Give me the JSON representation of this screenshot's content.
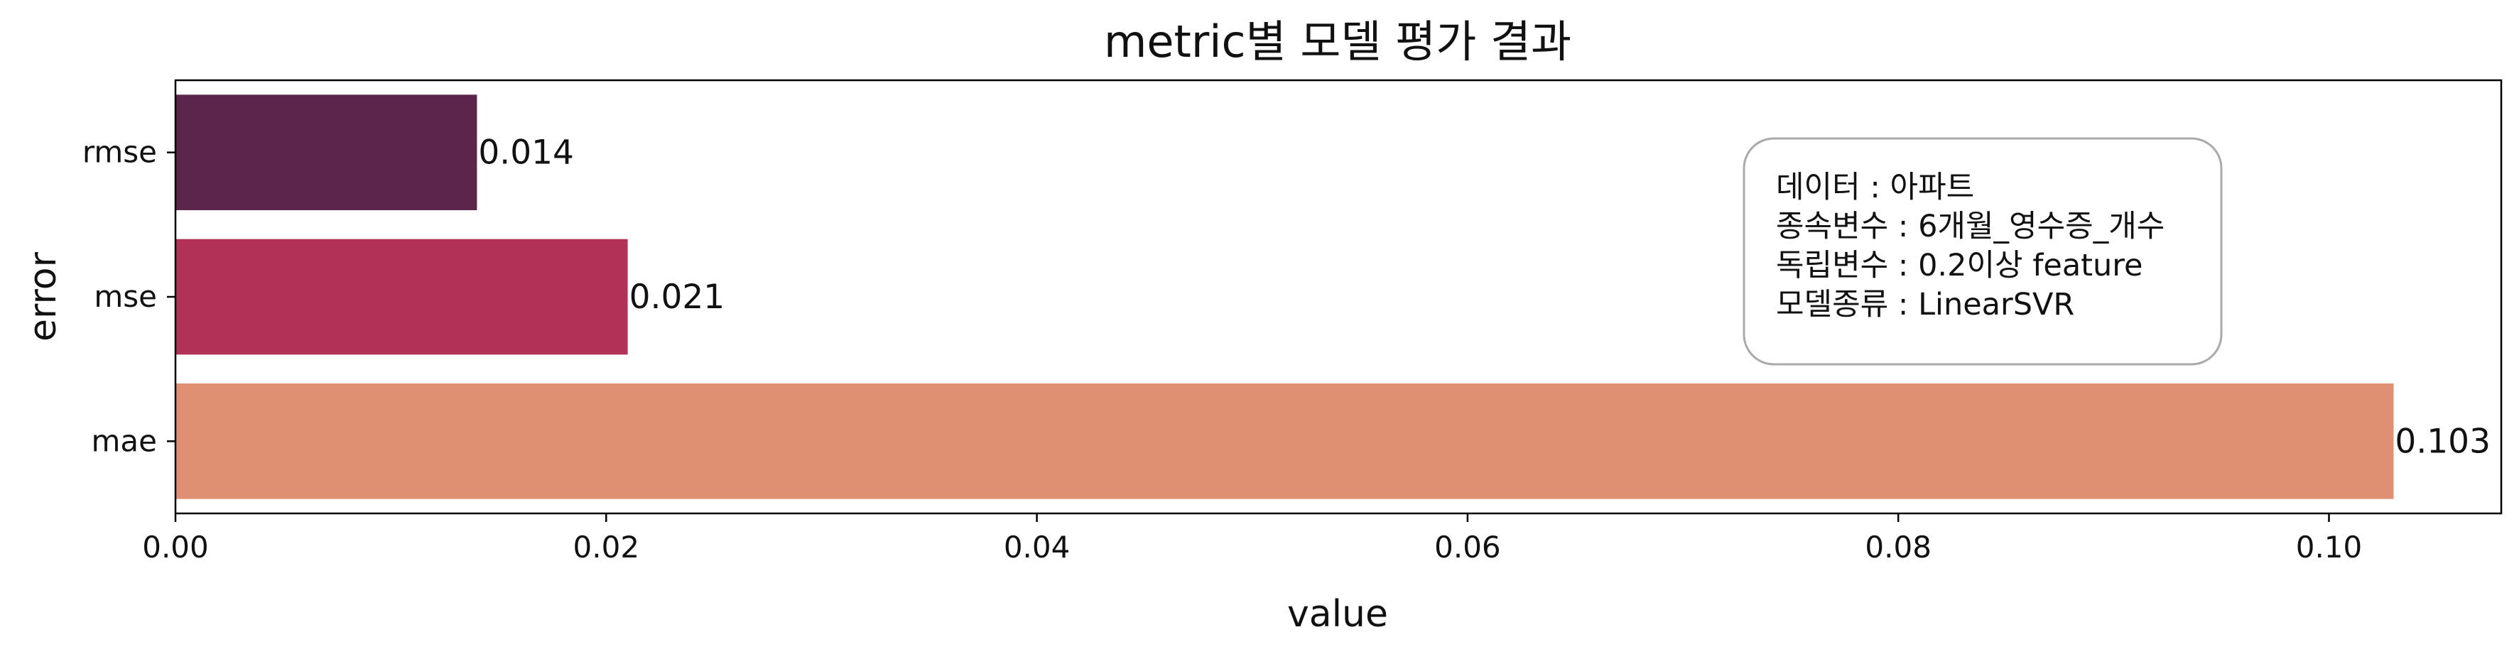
{
  "chart_data": {
    "type": "bar",
    "orientation": "horizontal",
    "title": "metric별 모델 평가 결과",
    "xlabel": "value",
    "ylabel": "error",
    "categories": [
      "rmse",
      "mse",
      "mae"
    ],
    "values": [
      0.014,
      0.021,
      0.103
    ],
    "value_labels": [
      "0.014",
      "0.021",
      "0.103"
    ],
    "bar_colors": [
      "#5c254b",
      "#b23157",
      "#e09072"
    ],
    "xlim": [
      0,
      0.108
    ],
    "xticks": [
      0,
      0.02,
      0.04,
      0.06,
      0.08,
      0.1
    ],
    "xtick_labels": [
      "0.00",
      "0.02",
      "0.04",
      "0.06",
      "0.08",
      "0.10"
    ],
    "grid": false,
    "annotation_box": {
      "lines": [
        "데이터 : 아파트",
        "종속변수 : 6개월_영수증_개수",
        "독립변수 : 0.2이상 feature",
        "모델종류 : LinearSVR"
      ]
    }
  }
}
